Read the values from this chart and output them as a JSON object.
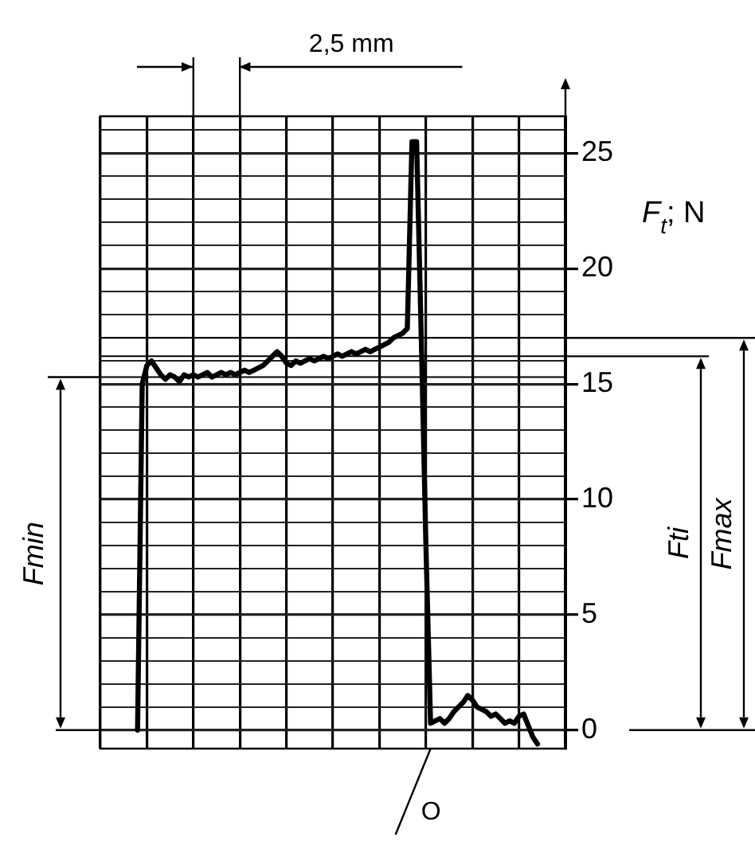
{
  "chart_data": {
    "type": "line",
    "ylabel": "F$_{t}$; N",
    "categories": [
      null,
      null,
      null,
      null,
      null,
      null,
      null,
      null,
      null,
      null,
      null,
      null,
      null,
      null,
      null,
      null,
      null,
      null,
      null,
      null,
      null,
      null,
      null,
      null,
      null,
      null,
      null,
      null,
      null,
      null,
      null,
      null,
      null,
      null,
      null,
      null,
      null,
      null,
      null,
      null,
      null,
      null,
      null,
      null,
      null,
      null,
      null,
      null,
      null,
      null,
      null,
      null,
      null,
      null,
      null,
      null,
      null,
      null,
      null,
      null,
      null,
      null,
      null,
      null,
      null,
      null,
      null,
      null,
      null,
      null,
      null,
      null,
      null,
      null,
      null,
      null,
      null,
      null,
      null,
      null,
      null,
      null,
      null,
      null,
      null,
      null,
      null,
      null,
      null,
      null,
      null,
      null,
      null,
      null,
      null,
      null,
      null,
      null,
      null,
      null,
      null
    ],
    "series": [
      {
        "color": "#000000",
        "values": [
          null,
          null,
          null,
          null,
          null,
          null,
          null,
          null,
          0,
          15.0,
          15.8,
          16.0,
          15.7,
          15.4,
          15.2,
          15.4,
          15.3,
          15.1,
          15.4,
          15.3,
          15.4,
          15.3,
          15.4,
          15.5,
          15.3,
          15.4,
          15.5,
          15.4,
          15.5,
          15.4,
          15.5,
          15.6,
          15.5,
          15.6,
          15.7,
          15.8,
          16.0,
          16.2,
          16.4,
          16.2,
          15.9,
          15.8,
          16.0,
          15.9,
          16.0,
          16.1,
          16.0,
          16.1,
          16.2,
          16.1,
          16.2,
          16.3,
          16.2,
          16.3,
          16.4,
          16.3,
          16.4,
          16.5,
          16.4,
          16.5,
          16.6,
          16.7,
          16.8,
          17.0,
          17.1,
          17.2,
          17.4,
          25.5,
          25.5,
          17,
          8,
          0.3,
          0.4,
          0.5,
          0.3,
          0.5,
          0.8,
          1.0,
          1.2,
          1.5,
          1.3,
          1.0,
          0.9,
          0.8,
          0.6,
          0.7,
          0.5,
          0.3,
          0.4,
          0.3,
          0.6,
          0.7,
          0.2,
          -0.3,
          -0.6,
          null,
          null,
          null,
          null,
          null,
          null
        ]
      }
    ],
    "ylim": [
      -0.8,
      26.6
    ],
    "yticks": [
      0,
      {
        "value": 1,
        "label": null
      },
      {
        "value": 2,
        "label": null
      },
      {
        "value": 3,
        "label": null
      },
      {
        "value": 4,
        "label": null
      },
      5,
      {
        "value": 6,
        "label": null
      },
      {
        "value": 7,
        "label": null
      },
      {
        "value": 8,
        "label": null
      },
      {
        "value": 9,
        "label": null
      },
      10,
      {
        "value": 11,
        "label": null
      },
      {
        "value": 12,
        "label": null
      },
      {
        "value": 13,
        "label": null
      },
      {
        "value": 14,
        "label": null
      },
      15,
      {
        "value": 16,
        "label": null
      },
      {
        "value": 17,
        "label": null
      },
      {
        "value": 18,
        "label": null
      },
      {
        "value": 19,
        "label": null
      },
      20,
      {
        "value": 21,
        "label": null
      },
      {
        "value": 22,
        "label": null
      },
      {
        "value": 23,
        "label": null
      },
      {
        "value": 24,
        "label": null
      },
      25,
      {
        "value": 26,
        "label": null
      }
    ],
    "ref_lines": [
      {
        "axis": "y",
        "value": 15.3
      },
      {
        "axis": "y",
        "value": 16.2
      },
      {
        "axis": "y",
        "value": 17.0
      }
    ],
    "annotations": [
      "2,5 mm",
      "O",
      "Fmin",
      "Fti",
      "Fmax"
    ],
    "grid": true,
    "tick_labels": "y",
    "marker": "none",
    "line_style": "solid"
  }
}
